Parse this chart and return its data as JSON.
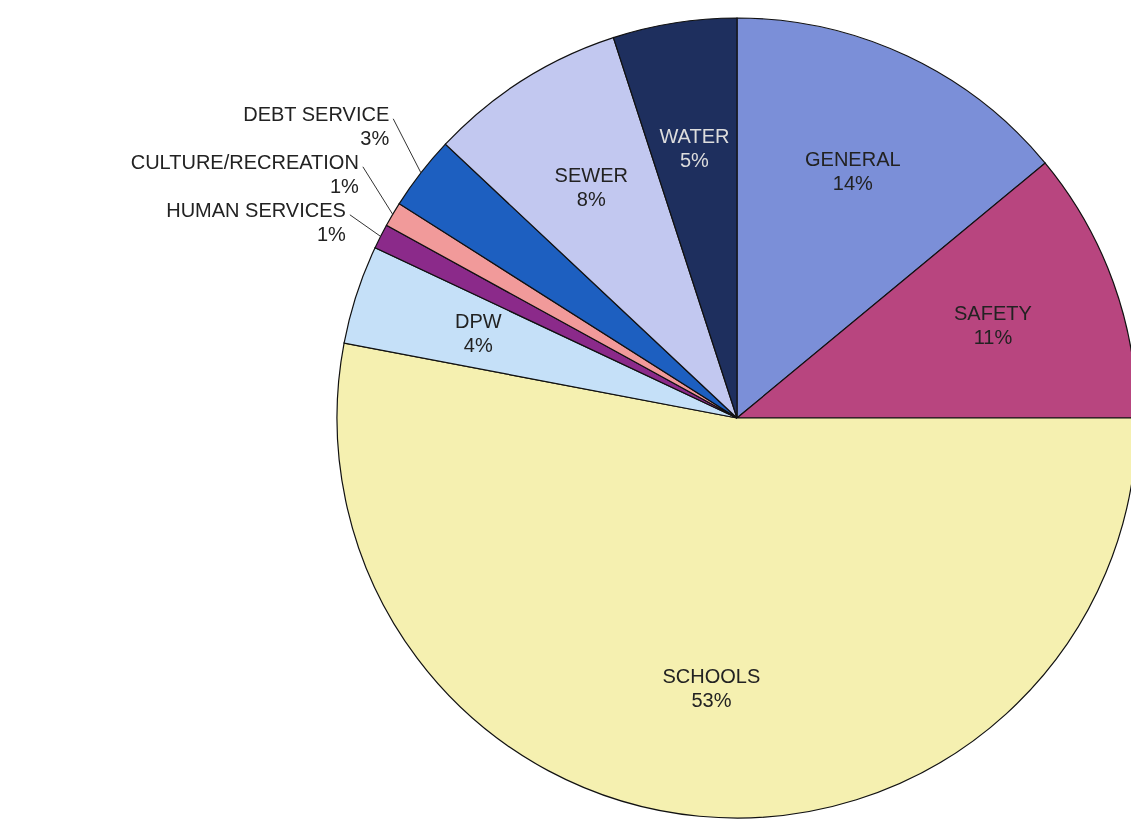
{
  "chart_data": {
    "type": "pie",
    "categories": [
      "GENERAL",
      "SAFETY",
      "SCHOOLS",
      "DPW",
      "HUMAN SERVICES",
      "CULTURE/RECREATION",
      "DEBT SERVICE",
      "SEWER",
      "WATER"
    ],
    "values": [
      14,
      11,
      53,
      4,
      1,
      1,
      3,
      8,
      5
    ],
    "value_labels": [
      "14%",
      "11%",
      "53%",
      "4%",
      "1%",
      "1%",
      "3%",
      "8%",
      "5%"
    ],
    "colors": [
      "#7b8fd8",
      "#b8457f",
      "#f5f0b0",
      "#c5e0f8",
      "#8b2a8a",
      "#f19a9a",
      "#1d5fc0",
      "#c2c8f0",
      "#1e2f5e"
    ]
  }
}
